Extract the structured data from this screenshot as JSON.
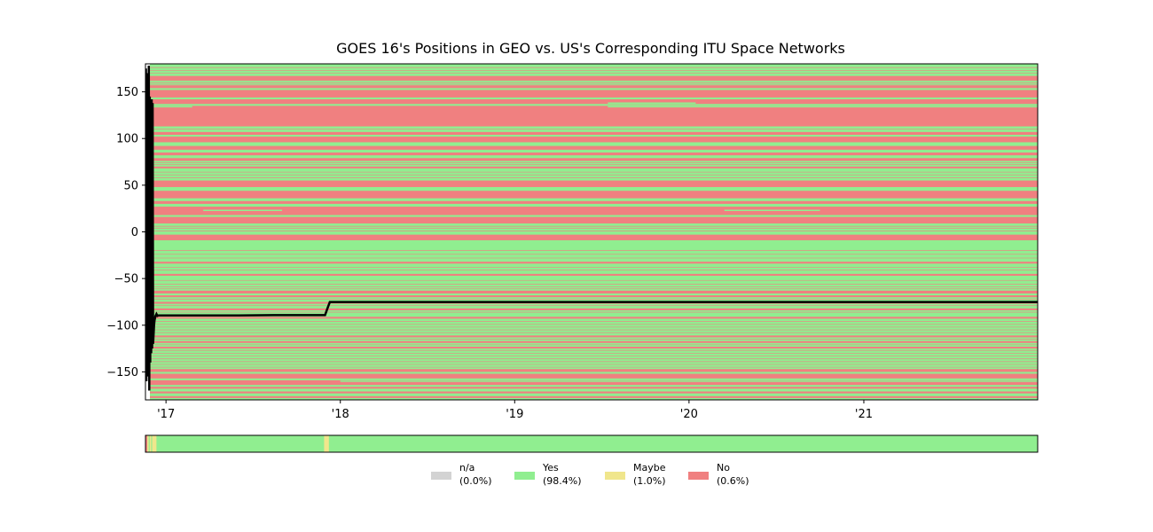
{
  "chart_data": {
    "type": "heatmap",
    "title": "GOES 16's Positions in GEO vs. US's Corresponding ITU Space Networks",
    "xlabel": "",
    "ylabel": "",
    "x_axis": {
      "type": "date",
      "range": [
        "2016-11-19",
        "2021-12-31"
      ],
      "ticks": [
        {
          "value": "2017-01-01",
          "label": "'17"
        },
        {
          "value": "2018-01-01",
          "label": "'18"
        },
        {
          "value": "2019-01-01",
          "label": "'19"
        },
        {
          "value": "2020-01-01",
          "label": "'20"
        },
        {
          "value": "2021-01-01",
          "label": "'21"
        }
      ]
    },
    "y_axis": {
      "range": [
        -180,
        180
      ],
      "ticks": [
        {
          "value": 150,
          "label": "150"
        },
        {
          "value": 100,
          "label": "100"
        },
        {
          "value": 50,
          "label": "50"
        },
        {
          "value": 0,
          "label": "0"
        },
        {
          "value": -50,
          "label": "−50"
        },
        {
          "value": -100,
          "label": "−100"
        },
        {
          "value": -150,
          "label": "−150"
        }
      ]
    },
    "grid": false,
    "status_colors": {
      "n/a": "#d3d3d3",
      "Yes": "#90ee90",
      "Maybe": "#f0e68c",
      "No": "#f08080"
    },
    "background_status": "Yes",
    "bands": [
      {
        "y": [
          162,
          167
        ],
        "status": "No"
      },
      {
        "y": [
          154,
          157
        ],
        "status": "No"
      },
      {
        "y": [
          144,
          152
        ],
        "status": "No"
      },
      {
        "y": [
          137,
          142
        ],
        "status": "No"
      },
      {
        "y": [
          113,
          135
        ],
        "status": "No"
      },
      {
        "y": [
          104,
          107
        ],
        "status": "No"
      },
      {
        "y": [
          96,
          102
        ],
        "status": "No"
      },
      {
        "y": [
          88,
          92
        ],
        "status": "No"
      },
      {
        "y": [
          82,
          85
        ],
        "status": "No"
      },
      {
        "y": [
          76,
          79
        ],
        "status": "No"
      },
      {
        "y": [
          68,
          70
        ],
        "status": "No"
      },
      {
        "y": [
          48,
          55
        ],
        "status": "No"
      },
      {
        "y": [
          36,
          44
        ],
        "status": "No"
      },
      {
        "y": [
          30,
          33
        ],
        "status": "No"
      },
      {
        "y": [
          18,
          27
        ],
        "status": "No"
      },
      {
        "y": [
          9,
          16
        ],
        "status": "No"
      },
      {
        "y": [
          -9,
          -3
        ],
        "status": "No"
      },
      {
        "y": [
          -34,
          -32
        ],
        "status": "No"
      },
      {
        "y": [
          -47,
          -45
        ],
        "status": "No"
      },
      {
        "y": [
          -66,
          -63
        ],
        "status": "No"
      },
      {
        "y": [
          -70,
          -68
        ],
        "status": "No"
      },
      {
        "y": [
          -77,
          -75
        ],
        "status": "No"
      },
      {
        "y": [
          -84,
          -82
        ],
        "status": "No"
      },
      {
        "y": [
          -93,
          -91
        ],
        "status": "No"
      },
      {
        "y": [
          -113,
          -111
        ],
        "status": "No"
      },
      {
        "y": [
          -119,
          -117
        ],
        "status": "No"
      },
      {
        "y": [
          -125,
          -123
        ],
        "status": "No"
      },
      {
        "y": [
          -150,
          -147
        ],
        "status": "No"
      },
      {
        "y": [
          -157,
          -152
        ],
        "status": "No"
      },
      {
        "y": [
          -164,
          -159
        ],
        "status": "No"
      },
      {
        "y": [
          -168,
          -166
        ],
        "status": "No"
      },
      {
        "y": [
          -173,
          -171
        ],
        "status": "No"
      },
      {
        "y": [
          -178,
          -176
        ],
        "status": "No"
      }
    ],
    "thin_lines": [
      -20,
      -24,
      -28,
      -38,
      -41,
      -52,
      -56,
      -59,
      -61,
      -72,
      -79,
      -86,
      -96,
      -99,
      -102,
      -105,
      -108,
      -115,
      -121,
      -127,
      -130,
      -133,
      -136,
      -139,
      -142,
      -145,
      1,
      4,
      6,
      58,
      61,
      64,
      72,
      74,
      110,
      158,
      160,
      170,
      173,
      176
    ],
    "yes_segments": [
      {
        "y": 134,
        "x": [
          "2016-11-19",
          "2017-02-25"
        ]
      },
      {
        "y": 138,
        "x": [
          "2019-07-15",
          "2020-01-15"
        ]
      },
      {
        "y": 134,
        "x": [
          "2019-07-15",
          "2021-12-31"
        ]
      },
      {
        "y": 23,
        "x": [
          "2017-03-20",
          "2017-09-01"
        ]
      },
      {
        "y": 23,
        "x": [
          "2020-03-15",
          "2020-10-01"
        ]
      },
      {
        "y": -160,
        "x": [
          "2018-01-01",
          "2021-12-31"
        ]
      }
    ],
    "series": [
      {
        "x": [
          "2016-11-19",
          "2016-11-20",
          "2016-11-21",
          "2016-11-22",
          "2016-11-23",
          "2016-11-24",
          "2016-11-25",
          "2016-11-26",
          "2016-11-27",
          "2016-11-28",
          "2016-11-29",
          "2016-11-30",
          "2016-12-01",
          "2016-12-02",
          "2016-12-03",
          "2016-12-04",
          "2016-12-05",
          "2016-12-06",
          "2016-12-07",
          "2016-12-08",
          "2016-12-10",
          "2016-12-12",
          "2016-12-14",
          "2016-12-16",
          "2017-01-01",
          "2017-06-01",
          "2017-08-15",
          "2017-11-30",
          "2017-12-05",
          "2017-12-10",
          "2018-06-01",
          "2019-01-01",
          "2020-01-01",
          "2021-01-01",
          "2021-12-31"
        ],
        "y": [
          -60,
          175,
          -160,
          170,
          -155,
          160,
          -150,
          178,
          -170,
          145,
          -140,
          140,
          -130,
          142,
          -125,
          138,
          -120,
          -110,
          -100,
          -95,
          -90,
          -88,
          -90,
          -89.5,
          -89.5,
          -89.5,
          -89.2,
          -89.2,
          -82,
          -75.2,
          -75.2,
          -75.2,
          -75.2,
          -75.2,
          -75.2
        ]
      }
    ],
    "strip": {
      "background_status": "Yes",
      "segments": [
        {
          "x": [
            "2016-11-19",
            "2016-11-23"
          ],
          "status": "No"
        },
        {
          "x": [
            "2016-11-23",
            "2016-11-26"
          ],
          "status": "Maybe"
        },
        {
          "x": [
            "2016-11-26",
            "2016-11-28"
          ],
          "status": "Yes"
        },
        {
          "x": [
            "2016-11-28",
            "2016-12-01"
          ],
          "status": "Maybe"
        },
        {
          "x": [
            "2016-12-01",
            "2016-12-03"
          ],
          "status": "Yes"
        },
        {
          "x": [
            "2016-12-03",
            "2016-12-12"
          ],
          "status": "Maybe"
        },
        {
          "x": [
            "2017-11-28",
            "2017-12-08"
          ],
          "status": "Maybe"
        }
      ]
    },
    "legend": {
      "placement": "bottom-center",
      "entries": [
        {
          "label": "n/a",
          "pct": "(0.0%)",
          "color": "#d3d3d3"
        },
        {
          "label": "Yes",
          "pct": "(98.4%)",
          "color": "#90ee90"
        },
        {
          "label": "Maybe",
          "pct": "(1.0%)",
          "color": "#f0e68c"
        },
        {
          "label": "No",
          "pct": "(0.6%)",
          "color": "#f08080"
        }
      ]
    }
  }
}
